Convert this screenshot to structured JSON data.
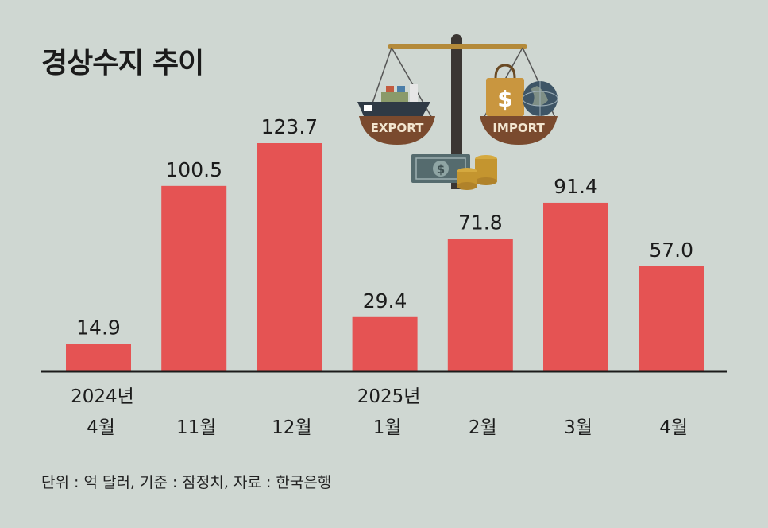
{
  "title": "경상수지 추이",
  "source_note": "단위 : 억 달러, 기준 : 잠정치, 자료 : 한국은행",
  "illustration": {
    "export_label": "EXPORT",
    "import_label": "IMPORT"
  },
  "colors": {
    "background": "#cfd7d2",
    "bar": "#e55353",
    "text": "#1b1b1b"
  },
  "chart_data": {
    "type": "bar",
    "title": "경상수지 추이",
    "xlabel": "",
    "ylabel": "",
    "unit": "억 달러",
    "categories": [
      [
        "2024년",
        "4월"
      ],
      [
        "",
        "11월"
      ],
      [
        "",
        "12월"
      ],
      [
        "2025년",
        "1월"
      ],
      [
        "",
        "2월"
      ],
      [
        "",
        "3월"
      ],
      [
        "",
        "4월"
      ]
    ],
    "values": [
      14.9,
      100.5,
      123.7,
      29.4,
      71.8,
      91.4,
      57.0
    ],
    "value_labels": [
      "14.9",
      "100.5",
      "123.7",
      "29.4",
      "71.8",
      "91.4",
      "57.0"
    ],
    "ylim": [
      0,
      123.7
    ],
    "grid": false,
    "legend": "none"
  }
}
